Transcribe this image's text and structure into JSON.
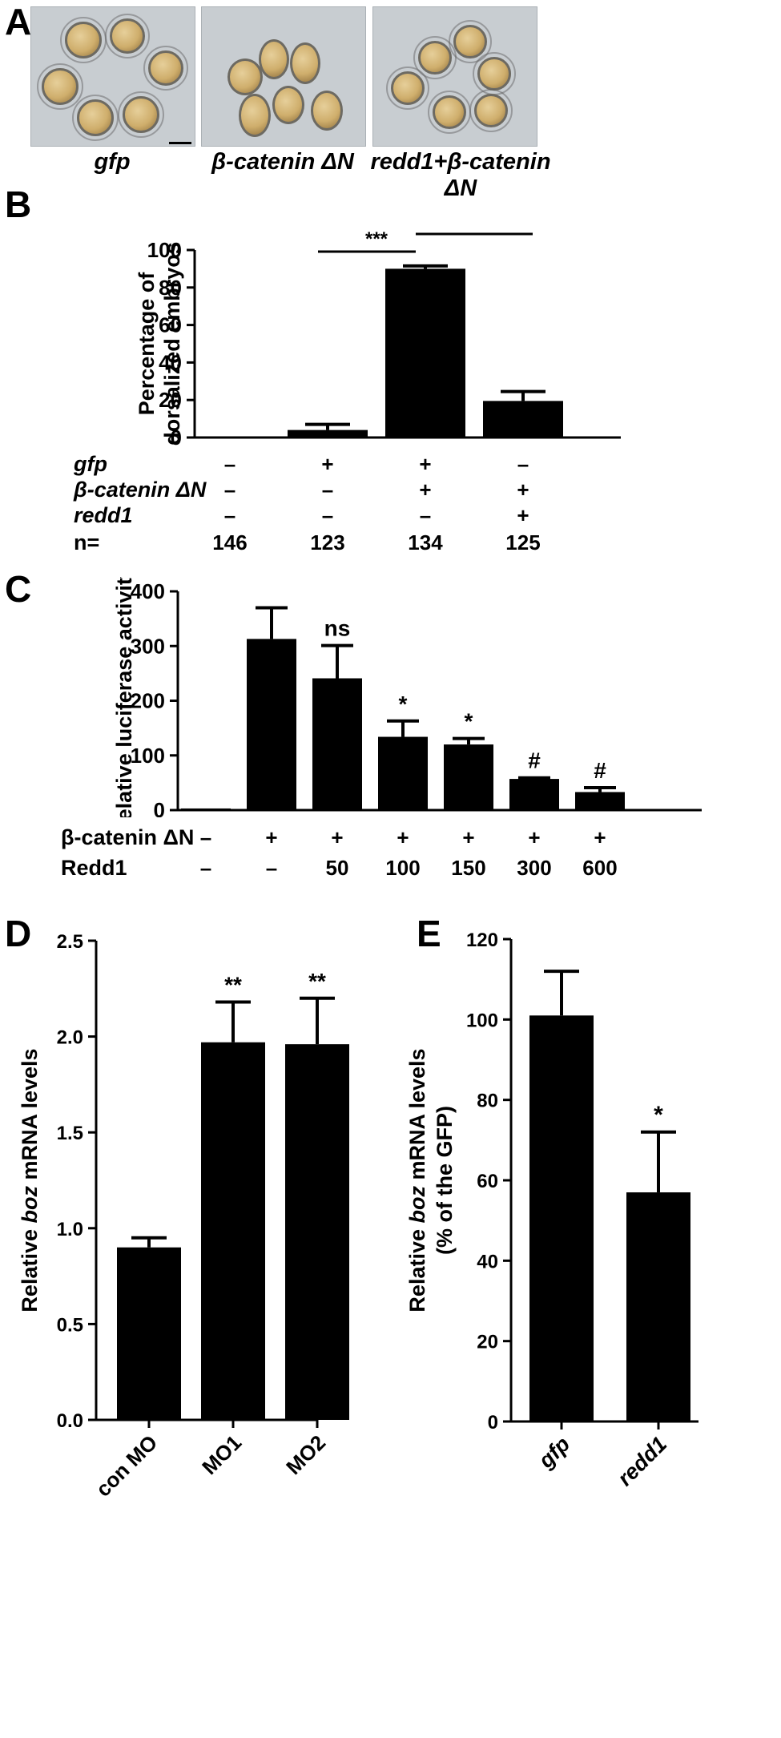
{
  "panels": {
    "A": {
      "letter": "A",
      "images": [
        {
          "caption": "gfp",
          "name": "photo-gfp"
        },
        {
          "caption": "β-catenin ΔN",
          "name": "photo-beta-catenin"
        },
        {
          "caption": "redd1+β-catenin ΔN",
          "name": "photo-redd1-beta-catenin"
        }
      ]
    },
    "B": {
      "letter": "B"
    },
    "C": {
      "letter": "C"
    },
    "D": {
      "letter": "D"
    },
    "E": {
      "letter": "E"
    }
  },
  "chart_data": [
    {
      "id": "B",
      "type": "bar",
      "title": "",
      "ylabel": "Percentage of dorsalized embryos",
      "ylabel_lines": [
        "Percentage of",
        "dorsalized embryos"
      ],
      "ylim": [
        0,
        100
      ],
      "yticks": [
        0,
        20,
        40,
        60,
        80,
        100
      ],
      "categories": [
        "1",
        "2",
        "3",
        "4"
      ],
      "values": [
        0,
        4,
        90,
        19.5
      ],
      "errors": [
        0,
        3,
        1.5,
        5
      ],
      "significance": [
        {
          "from": 1,
          "to": 2,
          "label": "***"
        },
        {
          "from": 2,
          "to": 3,
          "label": "***"
        }
      ],
      "condition_table": [
        {
          "label": "gfp",
          "italic": true,
          "values": [
            "–",
            "+",
            "+",
            "–"
          ]
        },
        {
          "label": "β-catenin ΔN",
          "italic": true,
          "values": [
            "–",
            "–",
            "+",
            "+"
          ]
        },
        {
          "label": "redd1",
          "italic": true,
          "values": [
            "–",
            "–",
            "–",
            "+"
          ]
        },
        {
          "label": "n=",
          "italic": false,
          "values": [
            "146",
            "123",
            "134",
            "125"
          ]
        }
      ]
    },
    {
      "id": "C",
      "type": "bar",
      "title": "",
      "ylabel": "Relative luciferase activity",
      "ylim": [
        0,
        400
      ],
      "yticks": [
        0,
        100,
        200,
        300,
        400
      ],
      "categories": [
        "1",
        "2",
        "3",
        "4",
        "5",
        "6",
        "7"
      ],
      "values": [
        3,
        313,
        241,
        134,
        120,
        57,
        33
      ],
      "errors": [
        0,
        57,
        60,
        29,
        11,
        2,
        8
      ],
      "annotations": [
        "",
        "",
        "ns",
        "*",
        "*",
        "#",
        "#"
      ],
      "condition_table": [
        {
          "label": "β-catenin ΔN",
          "values": [
            "–",
            "+",
            "+",
            "+",
            "+",
            "+",
            "+"
          ]
        },
        {
          "label": "Redd1",
          "values": [
            "–",
            "–",
            "50",
            "100",
            "150",
            "300",
            "600"
          ]
        }
      ]
    },
    {
      "id": "D",
      "type": "bar",
      "title": "",
      "ylabel_parts": [
        "Relative ",
        "boz",
        " mRNA levels"
      ],
      "ylim": [
        0,
        2.5
      ],
      "yticks": [
        "0.0",
        "0.5",
        "1.0",
        "1.5",
        "2.0",
        "2.5"
      ],
      "categories": [
        "con MO",
        "MO1",
        "MO2"
      ],
      "values": [
        0.9,
        1.97,
        1.96
      ],
      "errors": [
        0.05,
        0.21,
        0.24
      ],
      "annotations": [
        "",
        "**",
        "**"
      ]
    },
    {
      "id": "E",
      "type": "bar",
      "title": "",
      "ylabel_parts": [
        "Relative ",
        "boz",
        " mRNA levels"
      ],
      "ylabel_line2": "(% of the GFP)",
      "ylim": [
        0,
        120
      ],
      "yticks": [
        0,
        20,
        40,
        60,
        80,
        100,
        120
      ],
      "categories": [
        "gfp",
        "redd1"
      ],
      "values": [
        101,
        57
      ],
      "errors": [
        11,
        15
      ],
      "annotations": [
        "",
        "*"
      ]
    }
  ]
}
